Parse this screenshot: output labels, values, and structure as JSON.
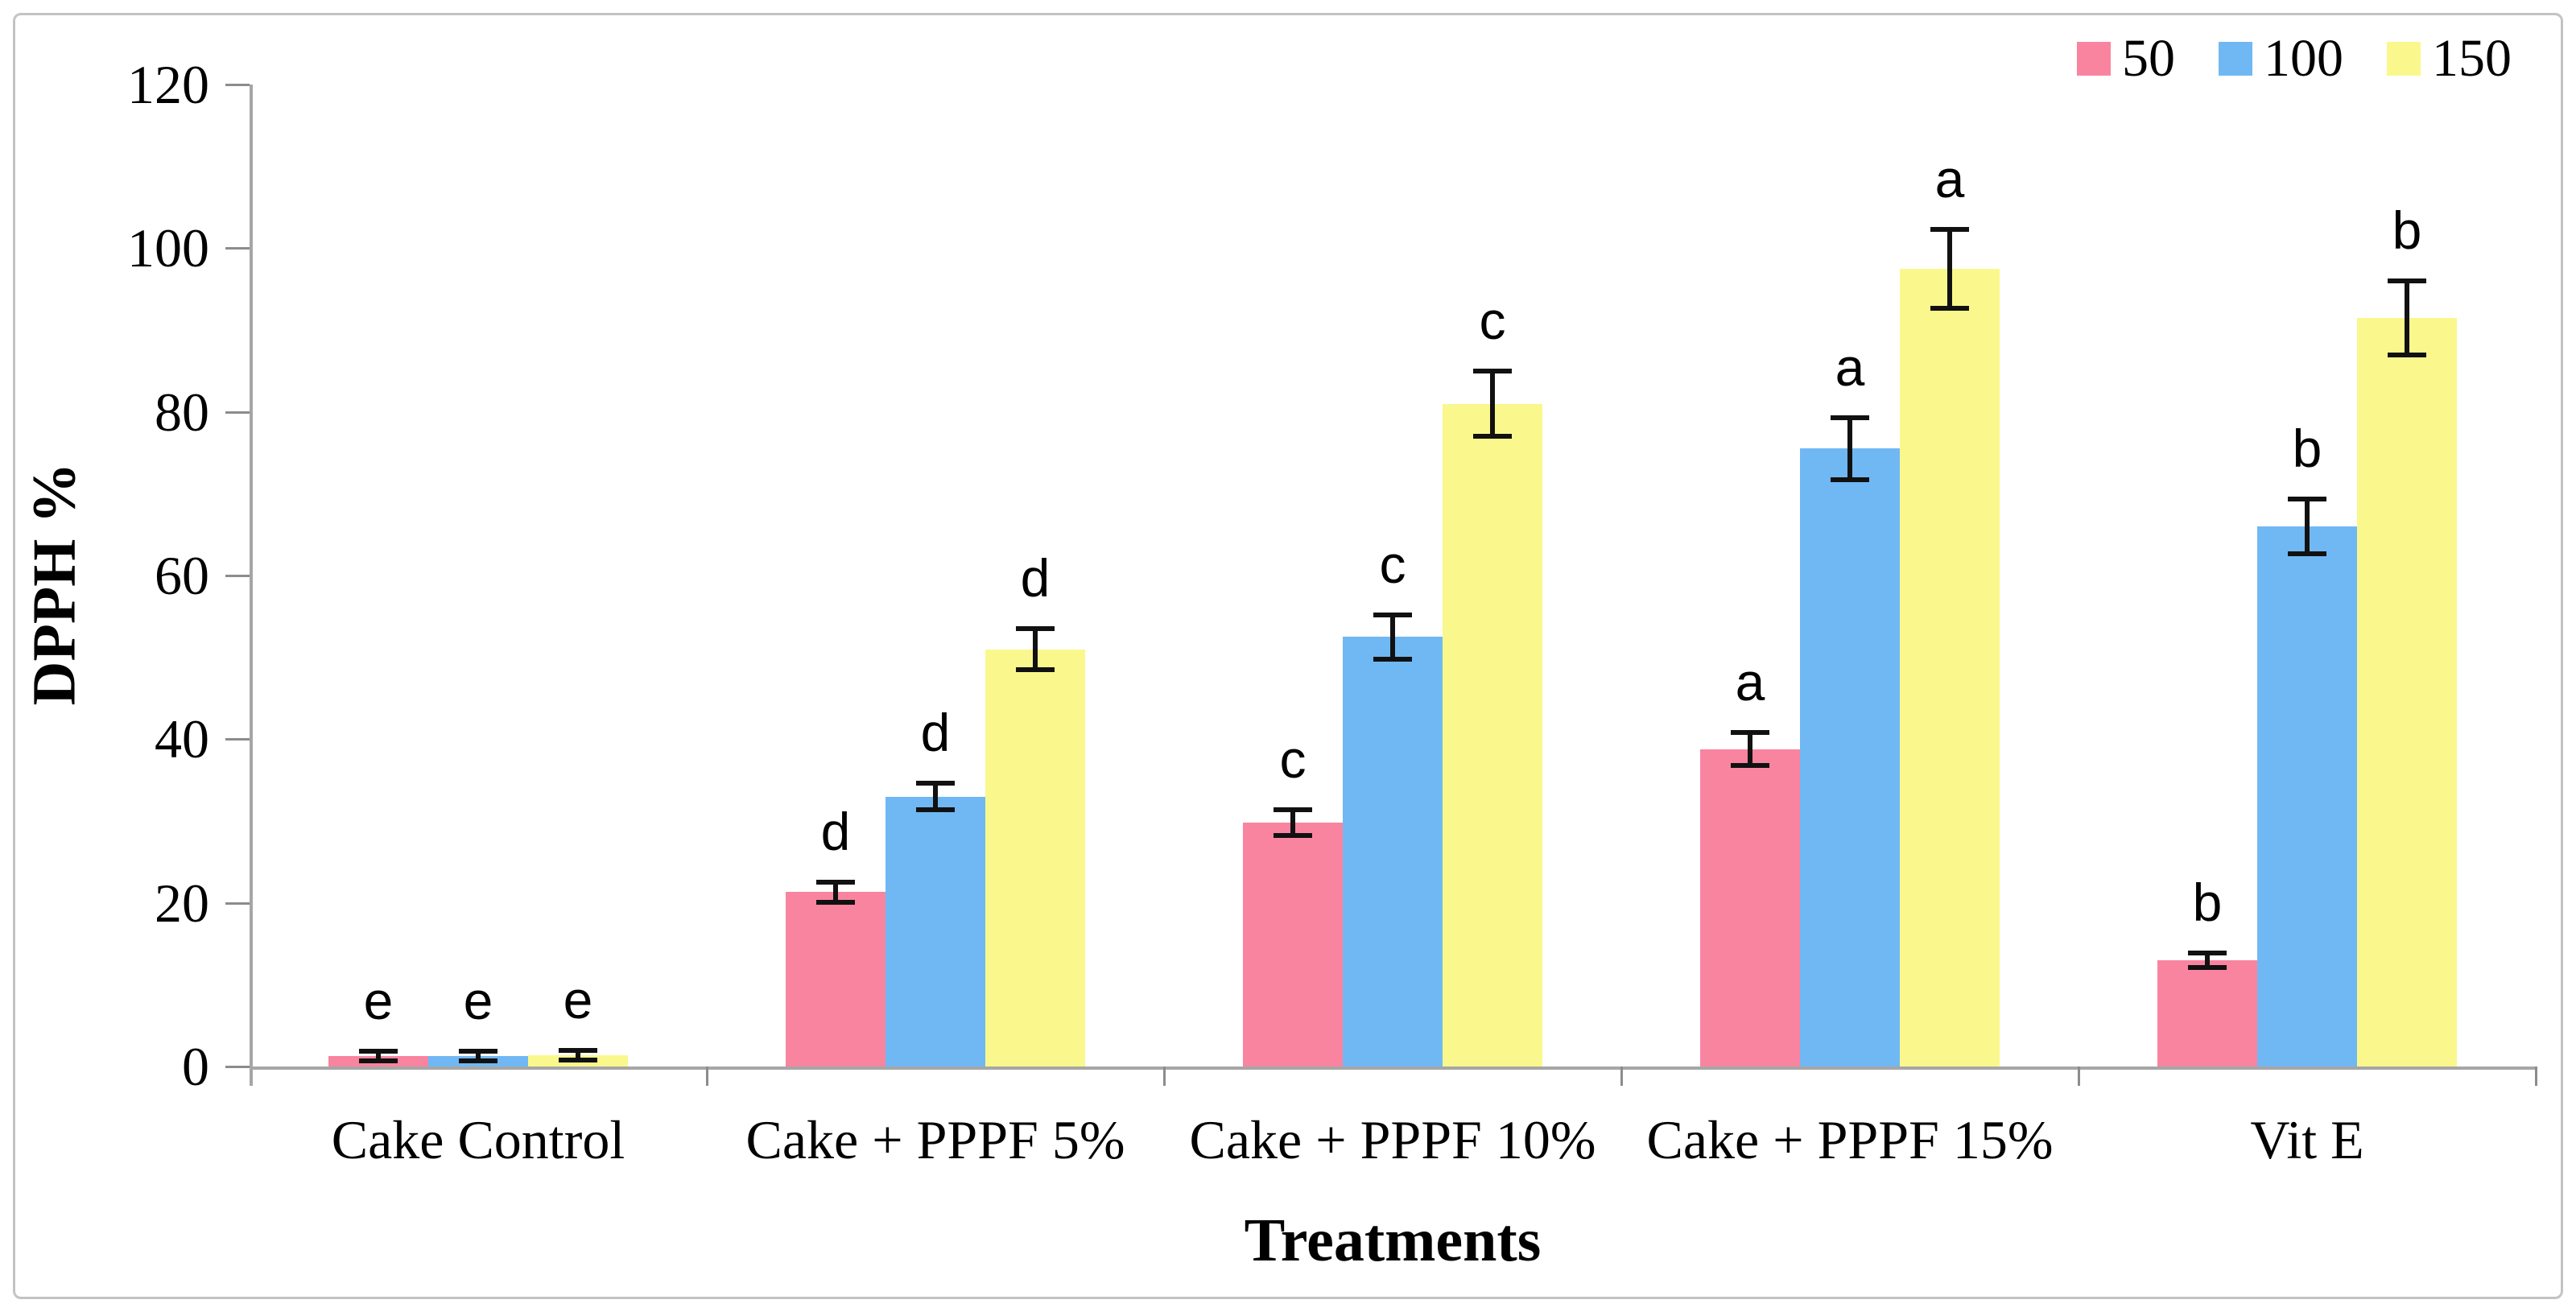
{
  "figure": {
    "background": "#ffffff",
    "border_color": "#c3c3c3"
  },
  "chart_data": {
    "type": "bar",
    "title": "",
    "xlabel": "Treatments",
    "ylabel": "DPPH %",
    "ylim": [
      0,
      120
    ],
    "yticks": [
      0,
      20,
      40,
      60,
      80,
      100,
      120
    ],
    "grid": false,
    "legend_position": "top-right",
    "axis_color": "#a6a6a6",
    "error_bar_color": "#111111",
    "categories": [
      "Cake Control",
      "Cake + PPPF 5%",
      "Cake + PPPF 10%",
      "Cake + PPPF 15%",
      "Vit E"
    ],
    "series": [
      {
        "name": "50",
        "color": "#F9849F",
        "values": [
          1.3,
          21.3,
          29.8,
          38.8,
          13.0
        ],
        "errors": [
          0.6,
          1.2,
          1.6,
          2.0,
          0.9
        ],
        "letters": [
          "e",
          "d",
          "c",
          "a",
          "b"
        ]
      },
      {
        "name": "100",
        "color": "#70B8F4",
        "values": [
          1.3,
          33.0,
          52.5,
          75.5,
          66.0
        ],
        "errors": [
          0.6,
          1.6,
          2.7,
          3.8,
          3.3
        ],
        "letters": [
          "e",
          "d",
          "c",
          "a",
          "b"
        ]
      },
      {
        "name": "150",
        "color": "#FAF88C",
        "values": [
          1.4,
          51.0,
          81.0,
          97.5,
          91.5
        ],
        "errors": [
          0.6,
          2.5,
          4.0,
          4.8,
          4.5
        ],
        "letters": [
          "e",
          "d",
          "c",
          "a",
          "b"
        ]
      }
    ]
  }
}
